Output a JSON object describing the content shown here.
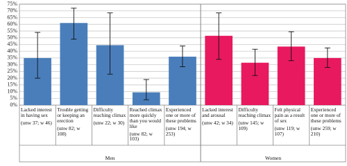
{
  "chart_data": {
    "type": "bar",
    "categories": [
      "Lacked interest in having sex",
      "Trouble getting or keeping an erection",
      "Difficulty reaching climax",
      "Reached climax more quickly than you would like",
      "Experienced one or more of these problems",
      "Lacked interest and arousal",
      "Difficulty reaching climax",
      "Felt physical pain as a result of sex",
      "Experienced one or more of these problems"
    ],
    "sample_sizes": [
      "(unw 37; w 46)",
      "(unw 82; w 108)",
      "(unw 22; w 30)",
      "(unw 82; w 103)",
      "(unw 194; w 253)",
      "(unw 42; w 34)",
      "(unw 145; w 109)",
      "(unw 119; w 107)",
      "(unw 259; w 210)"
    ],
    "series": [
      {
        "name": "Men",
        "color": "#4a7ebb",
        "values": [
          35,
          61,
          44.5,
          9.5,
          36,
          null,
          null,
          null,
          null
        ],
        "lower": [
          20,
          49,
          23,
          4,
          28.5,
          null,
          null,
          null,
          null
        ],
        "upper": [
          54,
          72,
          68.5,
          19,
          44,
          null,
          null,
          null,
          null
        ]
      },
      {
        "name": "Women",
        "color": "#e8195f",
        "values": [
          null,
          null,
          null,
          null,
          null,
          51.5,
          31.5,
          43.5,
          35
        ],
        "lower": [
          null,
          null,
          null,
          null,
          null,
          34,
          22,
          33,
          28
        ],
        "upper": [
          null,
          null,
          null,
          null,
          null,
          68.5,
          41.5,
          54.5,
          42.5
        ]
      }
    ],
    "ylim": [
      0,
      75
    ],
    "yticks": [
      {
        "value": 0,
        "label": "0%"
      },
      {
        "value": 5,
        "label": "5%"
      },
      {
        "value": 10,
        "label": "10%"
      },
      {
        "value": 15,
        "label": "15%"
      },
      {
        "value": 20,
        "label": "20%"
      },
      {
        "value": 25,
        "label": "25%"
      },
      {
        "value": 30,
        "label": "30%"
      },
      {
        "value": 35,
        "label": "35%"
      },
      {
        "value": 40,
        "label": "40%"
      },
      {
        "value": 45,
        "label": "45%"
      },
      {
        "value": 50,
        "label": "50%"
      },
      {
        "value": 55,
        "label": "55%"
      },
      {
        "value": 60,
        "label": "60%"
      },
      {
        "value": 65,
        "label": "65%"
      },
      {
        "value": 70,
        "label": "70%"
      },
      {
        "value": 75,
        "label": "75%"
      }
    ],
    "grid": true
  }
}
